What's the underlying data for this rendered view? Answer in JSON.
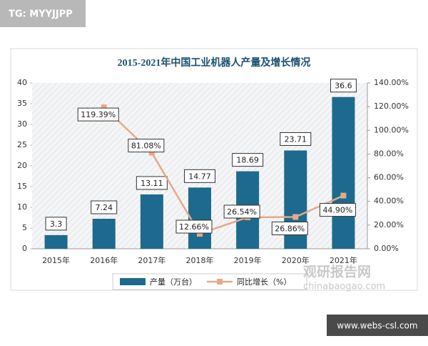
{
  "badge_top": "TG: MYYJJPP",
  "badge_bottom": "www.webs-csl.com",
  "watermark": {
    "name": "观研报告网",
    "url": "chinabaogao.com"
  },
  "chart_data": {
    "type": "bar-line",
    "title": "2015-2021年中国工业机器人产量及增长情况",
    "categories": [
      "2015年",
      "2016年",
      "2017年",
      "2018年",
      "2019年",
      "2020年",
      "2021年"
    ],
    "series": [
      {
        "name": "产量（万台）",
        "type": "bar",
        "color": "#1d6a8e",
        "values": [
          3.3,
          7.24,
          13.11,
          14.77,
          18.69,
          23.71,
          36.6
        ]
      },
      {
        "name": "同比增长（%）",
        "type": "line",
        "axis": "y2",
        "color": "#e5a98a",
        "values": [
          null,
          119.39,
          81.08,
          12.66,
          26.54,
          26.86,
          44.9
        ],
        "value_labels": [
          null,
          "119.39%",
          "81.08%",
          "12.66%",
          "26.54%",
          "26.86%",
          "44.90%"
        ]
      }
    ],
    "ylim": [
      0,
      40
    ],
    "yticks": [
      0,
      5,
      10,
      15,
      20,
      25,
      30,
      35,
      40
    ],
    "y2lim": [
      0,
      140
    ],
    "y2ticks": [
      {
        "value": 0,
        "label": "0.00%"
      },
      {
        "value": 20,
        "label": "20.00%"
      },
      {
        "value": 40,
        "label": "40.00%"
      },
      {
        "value": 60,
        "label": "60.00%"
      },
      {
        "value": 80,
        "label": "80.00%"
      },
      {
        "value": 100,
        "label": "100.00%"
      },
      {
        "value": 120,
        "label": "120.00%"
      },
      {
        "value": 140,
        "label": "140.00%"
      }
    ],
    "legend": "bottom"
  }
}
